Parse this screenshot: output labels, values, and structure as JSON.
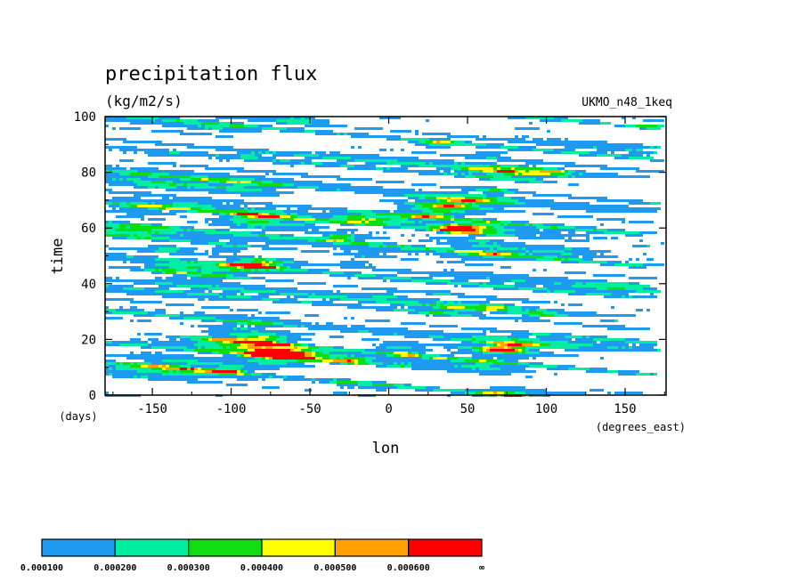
{
  "chart_data": {
    "type": "heatmap",
    "title": "precipitation flux",
    "units": "(kg/m2/s)",
    "model_label": "UKMO_n48_1keq",
    "xlabel": "lon",
    "x_units": "(degrees_east)",
    "ylabel": "time",
    "y_units": "(days)",
    "xlim": [
      -180,
      176
    ],
    "ylim": [
      0,
      100
    ],
    "x_ticks": [
      -150,
      -100,
      -50,
      0,
      50,
      100,
      150
    ],
    "y_ticks": [
      0,
      20,
      40,
      60,
      80,
      100
    ],
    "grid": false,
    "legend_position": "bottom",
    "color_levels": [
      {
        "from": "0.000100",
        "to": "0.000200",
        "color": "#1e9bf0"
      },
      {
        "from": "0.000200",
        "to": "0.000300",
        "color": "#00eea0"
      },
      {
        "from": "0.000300",
        "to": "0.000400",
        "color": "#10dd10"
      },
      {
        "from": "0.000400",
        "to": "0.000500",
        "color": "#ffff00"
      },
      {
        "from": "0.000500",
        "to": "0.000600",
        "color": "#ff9f00"
      },
      {
        "from": "0.000600",
        "to": "∞",
        "color": "#ff0000"
      }
    ],
    "colorbar_labels": [
      "0.000100",
      "0.000200",
      "0.000300",
      "0.000400",
      "0.000500",
      "0.000600",
      "∞"
    ]
  }
}
